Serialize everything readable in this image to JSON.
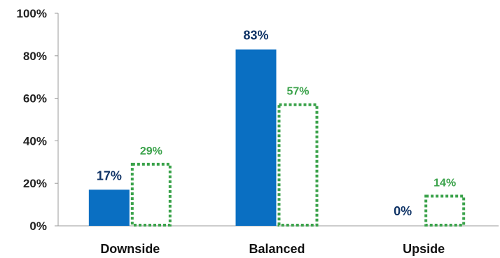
{
  "chart_data": {
    "type": "bar",
    "title": "",
    "xlabel": "",
    "ylabel": "",
    "categories": [
      "Downside",
      "Balanced",
      "Upside"
    ],
    "ylim": [
      0,
      100
    ],
    "yticks": [
      0,
      20,
      40,
      60,
      80,
      100
    ],
    "ytick_labels": [
      "0%",
      "20%",
      "40%",
      "60%",
      "80%",
      "100%"
    ],
    "grid": false,
    "legend": "none",
    "series": [
      {
        "values": [
          17,
          83,
          0
        ],
        "labels": [
          "17%",
          "83%",
          "0%"
        ],
        "style": "solid",
        "color": "#0a6fc2",
        "label_color": "#0f3366"
      },
      {
        "values": [
          29,
          57,
          14
        ],
        "labels": [
          "29%",
          "57%",
          "14%"
        ],
        "style": "dotted-outline",
        "color": "#3aa24a",
        "label_color": "#3aa24a"
      }
    ]
  }
}
